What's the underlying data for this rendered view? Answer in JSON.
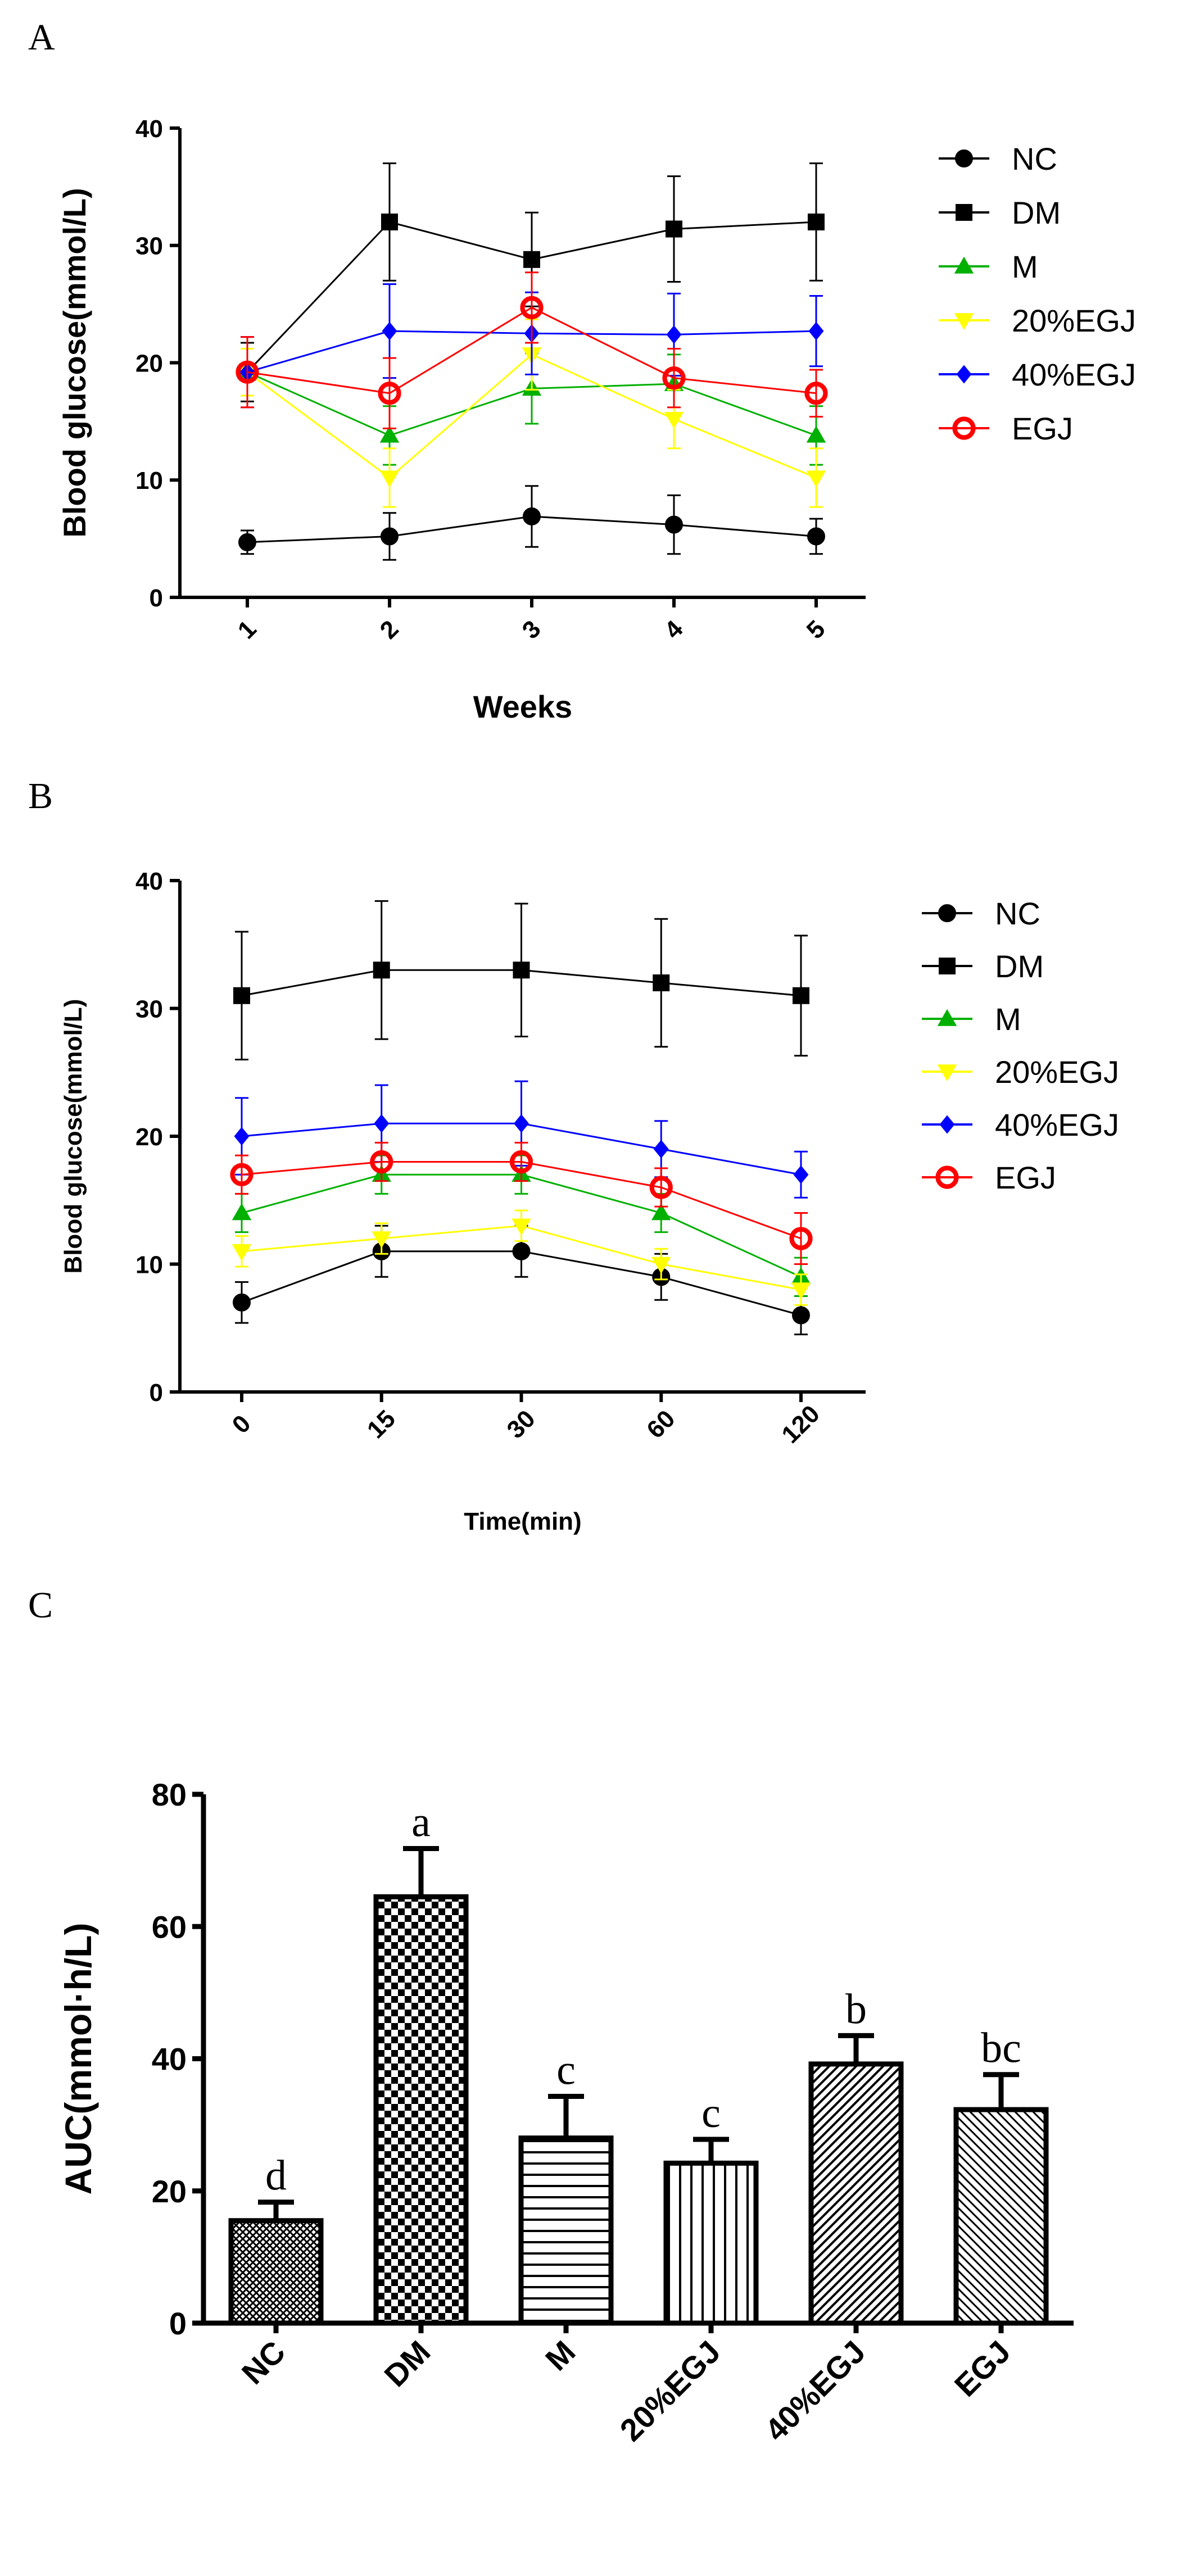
{
  "chart_data": [
    {
      "panel": "A",
      "type": "line",
      "title": "",
      "xlabel": "Weeks",
      "ylabel": "Blood glucose(mmol/L)",
      "categories": [
        "1",
        "2",
        "3",
        "4",
        "5"
      ],
      "ylim": [
        0,
        40
      ],
      "yticks": [
        "0",
        "10",
        "20",
        "30",
        "40"
      ],
      "legend_position": "right",
      "series": [
        {
          "name": "NC",
          "color": "#000000",
          "marker": "circle",
          "values": [
            4.7,
            5.2,
            6.9,
            6.2,
            5.2
          ],
          "err": [
            1.0,
            2.0,
            2.6,
            2.5,
            1.5
          ]
        },
        {
          "name": "DM",
          "color": "#000000",
          "marker": "square",
          "values": [
            19.2,
            32.0,
            28.8,
            31.4,
            32.0
          ],
          "err": [
            2.5,
            5.0,
            4.0,
            4.5,
            5.0
          ]
        },
        {
          "name": "M",
          "color": "#00b000",
          "marker": "triangle-up",
          "values": [
            19.2,
            13.8,
            17.8,
            18.2,
            13.8
          ],
          "err": [
            2.0,
            2.5,
            3.0,
            2.5,
            2.5
          ]
        },
        {
          "name": "20%EGJ",
          "color": "#ffff00",
          "marker": "triangle-down",
          "values": [
            19.2,
            10.2,
            20.7,
            15.2,
            10.2
          ],
          "err": [
            2.0,
            2.5,
            3.0,
            2.5,
            2.5
          ]
        },
        {
          "name": "40%EGJ",
          "color": "#0000ff",
          "marker": "diamond",
          "values": [
            19.2,
            22.7,
            22.5,
            22.4,
            22.7
          ],
          "err": [
            3.0,
            4.0,
            3.5,
            3.5,
            3.0
          ]
        },
        {
          "name": "EGJ",
          "color": "#ff0000",
          "marker": "open-circle",
          "values": [
            19.2,
            17.4,
            24.7,
            18.7,
            17.4
          ],
          "err": [
            3.0,
            3.0,
            3.0,
            2.5,
            2.0
          ]
        }
      ]
    },
    {
      "panel": "B",
      "type": "line",
      "title": "",
      "xlabel": "Time(min)",
      "ylabel": "Blood glucose(mmol/L)",
      "categories": [
        "0",
        "15",
        "30",
        "60",
        "120"
      ],
      "ylim": [
        0,
        40
      ],
      "yticks": [
        "0",
        "10",
        "20",
        "30",
        "40"
      ],
      "legend_position": "right",
      "series": [
        {
          "name": "NC",
          "color": "#000000",
          "marker": "circle",
          "values": [
            7,
            11,
            11,
            9,
            6
          ],
          "err": [
            1.6,
            2.0,
            2.0,
            1.8,
            1.5
          ]
        },
        {
          "name": "DM",
          "color": "#000000",
          "marker": "square",
          "values": [
            31,
            33,
            33,
            32,
            31
          ],
          "err": [
            5.0,
            5.4,
            5.2,
            5.0,
            4.7
          ]
        },
        {
          "name": "M",
          "color": "#00b000",
          "marker": "triangle-up",
          "values": [
            14,
            17,
            17,
            14,
            9
          ],
          "err": [
            1.5,
            1.5,
            1.5,
            1.5,
            1.5
          ]
        },
        {
          "name": "20%EGJ",
          "color": "#ffff00",
          "marker": "triangle-down",
          "values": [
            11,
            12,
            13,
            10,
            8
          ],
          "err": [
            1.2,
            1.2,
            1.2,
            1.2,
            1.2
          ]
        },
        {
          "name": "40%EGJ",
          "color": "#0000ff",
          "marker": "diamond",
          "values": [
            20,
            21,
            21,
            19,
            17
          ],
          "err": [
            3.0,
            3.0,
            3.3,
            2.2,
            1.8
          ]
        },
        {
          "name": "EGJ",
          "color": "#ff0000",
          "marker": "open-circle",
          "values": [
            17,
            18,
            18,
            16,
            12
          ],
          "err": [
            1.5,
            1.5,
            1.5,
            1.5,
            2.0
          ]
        }
      ]
    },
    {
      "panel": "C",
      "type": "bar",
      "title": "",
      "xlabel": "",
      "ylabel": "AUC(mmol·h/L)",
      "categories": [
        "NC",
        "DM",
        "M",
        "20%EGJ",
        "40%EGJ",
        "EGJ"
      ],
      "values": [
        15.5,
        64.5,
        28.0,
        24.2,
        39.2,
        32.3
      ],
      "err": [
        2.8,
        7.3,
        6.3,
        3.6,
        4.3,
        5.3
      ],
      "annotations": [
        "d",
        "a",
        "c",
        "c",
        "b",
        "bc"
      ],
      "patterns": [
        "crosshatch-fine",
        "checker",
        "horizontal",
        "vertical",
        "diagonal-dense",
        "diagonal"
      ],
      "ylim": [
        0,
        80
      ],
      "yticks": [
        "0",
        "20",
        "40",
        "60",
        "80"
      ]
    }
  ],
  "panel_labels": [
    "A",
    "B",
    "C"
  ]
}
